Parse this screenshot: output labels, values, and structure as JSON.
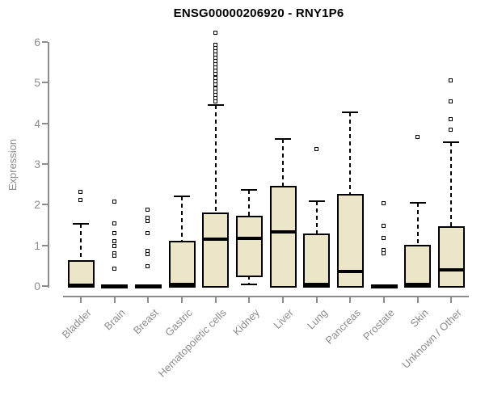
{
  "title": "ENSG00000206920 - RNY1P6",
  "chart_data": {
    "type": "boxplot",
    "title": "ENSG00000206920 - RNY1P6",
    "xlabel": "",
    "ylabel": "Expression",
    "ylim": [
      0,
      6
    ],
    "y_ticks": [
      0,
      1,
      2,
      3,
      4,
      5,
      6
    ],
    "grid": false,
    "legend": false,
    "categories": [
      "Bladder",
      "Brain",
      "Breast",
      "Gastric",
      "Hematopoietic cells",
      "Kidney",
      "Liver",
      "Lung",
      "Pancreas",
      "Prostate",
      "Skin",
      "Unknown / Other"
    ],
    "boxes": [
      {
        "name": "Bladder",
        "q1": 0,
        "median": 0.02,
        "q3": 0.63,
        "whisker_low": 0,
        "whisker_high": 1.52,
        "outliers": [
          2.3,
          2.11
        ]
      },
      {
        "name": "Brain",
        "q1": 0,
        "median": 0,
        "q3": 0,
        "whisker_low": 0,
        "whisker_high": 0,
        "outliers": [
          2.07,
          1.53,
          1.29,
          1.1,
          0.98,
          0.8,
          0.74,
          0.42
        ]
      },
      {
        "name": "Breast",
        "q1": 0,
        "median": 0,
        "q3": 0,
        "whisker_low": 0,
        "whisker_high": 0,
        "outliers": [
          1.87,
          1.66,
          1.58,
          1.29,
          0.86,
          0.78,
          0.48
        ]
      },
      {
        "name": "Gastric",
        "q1": 0,
        "median": 0.03,
        "q3": 1.12,
        "whisker_low": 0,
        "whisker_high": 2.2,
        "outliers": []
      },
      {
        "name": "Hematopoietic cells",
        "q1": 0,
        "median": 1.15,
        "q3": 1.81,
        "whisker_low": 0,
        "whisker_high": 4.45,
        "outliers": [
          6.22,
          5.92,
          5.84,
          5.76,
          5.68,
          5.6,
          5.52,
          5.44,
          5.36,
          5.28,
          5.2,
          5.1,
          5.02,
          4.94,
          4.84,
          4.76,
          4.68,
          4.6,
          4.52
        ]
      },
      {
        "name": "Kidney",
        "q1": 0.26,
        "median": 1.18,
        "q3": 1.72,
        "whisker_low": 0.03,
        "whisker_high": 2.37,
        "outliers": []
      },
      {
        "name": "Liver",
        "q1": 0,
        "median": 1.33,
        "q3": 2.47,
        "whisker_low": 0,
        "whisker_high": 3.62,
        "outliers": []
      },
      {
        "name": "Lung",
        "q1": 0,
        "median": 0.04,
        "q3": 1.3,
        "whisker_low": 0,
        "whisker_high": 2.08,
        "outliers": [
          3.36
        ]
      },
      {
        "name": "Pancreas",
        "q1": 0,
        "median": 0.35,
        "q3": 2.27,
        "whisker_low": 0,
        "whisker_high": 4.28,
        "outliers": []
      },
      {
        "name": "Prostate",
        "q1": 0,
        "median": 0,
        "q3": 0,
        "whisker_low": 0,
        "whisker_high": 0,
        "outliers": [
          2.03,
          1.47,
          1.17,
          0.88,
          0.8
        ]
      },
      {
        "name": "Skin",
        "q1": 0,
        "median": 0.04,
        "q3": 1.02,
        "whisker_low": 0,
        "whisker_high": 2.05,
        "outliers": [
          3.66
        ]
      },
      {
        "name": "Unknown / Other",
        "q1": 0,
        "median": 0.4,
        "q3": 1.47,
        "whisker_low": 0,
        "whisker_high": 3.54,
        "outliers": [
          5.05,
          4.53,
          4.09,
          3.83
        ]
      }
    ],
    "colors": {
      "box_fill": "#ECE6C9",
      "box_border": "#000000",
      "median": "#000000",
      "axis": "#8C8C8C",
      "tick_label": "#8C8C8C",
      "title": "#000000"
    }
  }
}
